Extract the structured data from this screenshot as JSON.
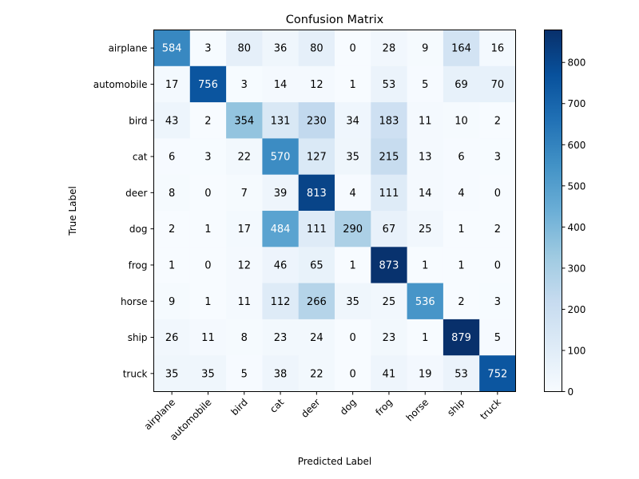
{
  "chart_data": {
    "type": "heatmap",
    "title": "Confusion Matrix",
    "xlabel": "Predicted Label",
    "ylabel": "True Label",
    "x_categories": [
      "airplane",
      "automobile",
      "bird",
      "cat",
      "deer",
      "dog",
      "frog",
      "horse",
      "ship",
      "truck"
    ],
    "y_categories": [
      "airplane",
      "automobile",
      "bird",
      "cat",
      "deer",
      "dog",
      "frog",
      "horse",
      "ship",
      "truck"
    ],
    "values": [
      [
        584,
        3,
        80,
        36,
        80,
        0,
        28,
        9,
        164,
        16
      ],
      [
        17,
        756,
        3,
        14,
        12,
        1,
        53,
        5,
        69,
        70
      ],
      [
        43,
        2,
        354,
        131,
        230,
        34,
        183,
        11,
        10,
        2
      ],
      [
        6,
        3,
        22,
        570,
        127,
        35,
        215,
        13,
        6,
        3
      ],
      [
        8,
        0,
        7,
        39,
        813,
        4,
        111,
        14,
        4,
        0
      ],
      [
        2,
        1,
        17,
        484,
        111,
        290,
        67,
        25,
        1,
        2
      ],
      [
        1,
        0,
        12,
        46,
        65,
        1,
        873,
        1,
        1,
        0
      ],
      [
        9,
        1,
        11,
        112,
        266,
        35,
        25,
        536,
        2,
        3
      ],
      [
        26,
        11,
        8,
        23,
        24,
        0,
        23,
        1,
        879,
        5
      ],
      [
        35,
        35,
        5,
        38,
        22,
        0,
        41,
        19,
        53,
        752
      ]
    ],
    "colormap": "Blues",
    "vmin": 0,
    "vmax": 879,
    "colorbar_ticks": [
      0,
      100,
      200,
      300,
      400,
      500,
      600,
      700,
      800
    ]
  }
}
